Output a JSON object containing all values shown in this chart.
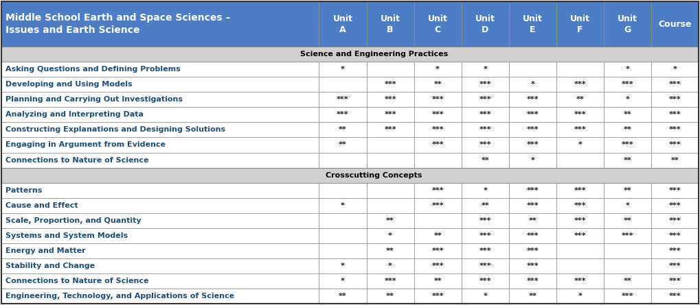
{
  "title_line1": "Middle School Earth and Space Sciences –",
  "title_line2": "Issues and Earth Science",
  "header_bg": "#4D7EC5",
  "header_text_color": "#FFFFFF",
  "section_bg": "#D0D0D0",
  "row_text_color": "#1F4E79",
  "border_color": "#888888",
  "columns": [
    "Unit\nA",
    "Unit\nB",
    "Unit\nC",
    "Unit\nD",
    "Unit\nE",
    "Unit\nF",
    "Unit\nG",
    "Course"
  ],
  "sections": [
    {
      "name": "Science and Engineering Practices",
      "rows": [
        [
          "Asking Questions and Defining Problems",
          "*",
          "",
          "*",
          "*",
          "",
          "",
          "*",
          "*"
        ],
        [
          "Developing and Using Models",
          "",
          "***",
          "**",
          "***",
          "*",
          "***",
          "***",
          "***"
        ],
        [
          "Planning and Carrying Out Investigations",
          "***",
          "***",
          "***",
          "***",
          "***",
          "**",
          "*",
          "***"
        ],
        [
          "Analyzing and Interpreting Data",
          "***",
          "***",
          "***",
          "***",
          "***",
          "***",
          "**",
          "***"
        ],
        [
          "Constructing Explanations and Designing Solutions",
          "**",
          "***",
          "***",
          "***",
          "***",
          "***",
          "**",
          "***"
        ],
        [
          "Engaging in Argument from Evidence",
          "**",
          "",
          "***",
          "***",
          "***",
          "*",
          "***",
          "***"
        ],
        [
          "Connections to Nature of Science",
          "",
          "",
          "",
          "**",
          "*",
          "",
          "**",
          "**"
        ]
      ]
    },
    {
      "name": "Crosscutting Concepts",
      "rows": [
        [
          "Patterns",
          "",
          "",
          "***",
          "*",
          "***",
          "***",
          "**",
          "***"
        ],
        [
          "Cause and Effect",
          "*",
          "",
          "***",
          "**",
          "***",
          "***",
          "*",
          "***"
        ],
        [
          "Scale, Proportion, and Quantity",
          "",
          "**",
          "",
          "***",
          "**",
          "***",
          "**",
          "***"
        ],
        [
          "Systems and System Models",
          "",
          "*",
          "**",
          "***",
          "***",
          "***",
          "***",
          "***"
        ],
        [
          "Energy and Matter",
          "",
          "**",
          "***",
          "***",
          "***",
          "",
          "",
          "***"
        ],
        [
          "Stability and Change",
          "*",
          "*",
          "***",
          "***",
          "***",
          "",
          "",
          "***"
        ],
        [
          "Connections to Nature of Science",
          "*",
          "***",
          "**",
          "***",
          "***",
          "***",
          "**",
          "***"
        ],
        [
          "Engineering, Technology, and Applications of Science",
          "**",
          "**",
          "***",
          "*",
          "**",
          "*",
          "***",
          "***"
        ]
      ]
    }
  ],
  "figsize": [
    10.19,
    4.45
  ],
  "dpi": 100
}
